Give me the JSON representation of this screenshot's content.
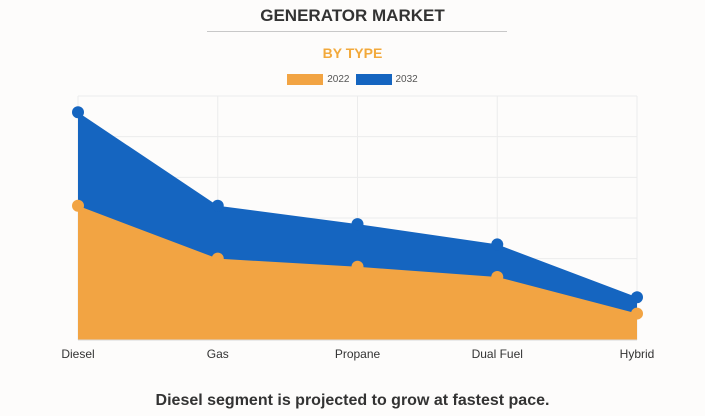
{
  "chart_data": {
    "type": "area",
    "title": "GENERATOR MARKET",
    "subtitle": "BY TYPE",
    "categories": [
      "Diesel",
      "Gas",
      "Propane",
      "Dual Fuel",
      "Hybrid"
    ],
    "series": [
      {
        "name": "2022",
        "color": "#f2a443",
        "values": [
          33,
          20,
          18,
          15.5,
          6.5
        ]
      },
      {
        "name": "2032",
        "color": "#1565c0",
        "values": [
          56,
          33,
          28.5,
          23.5,
          10.5
        ]
      }
    ],
    "ylim": [
      0,
      60
    ],
    "grid": true,
    "legend": "top-center",
    "xlabel": "",
    "ylabel": ""
  },
  "footer": {
    "caption": "Diesel segment is projected to grow at fastest pace."
  }
}
